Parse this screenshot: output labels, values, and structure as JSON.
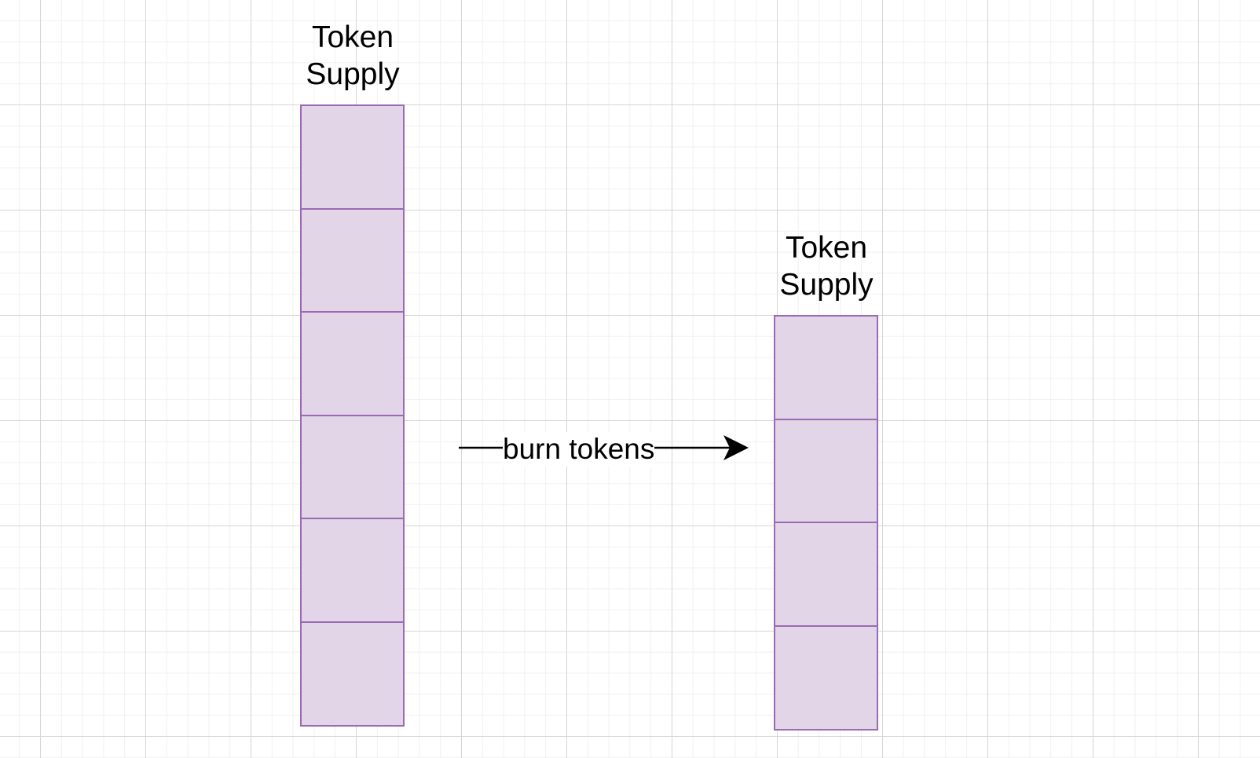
{
  "diagram": {
    "left_stack": {
      "label": "Token Supply",
      "block_count": 6
    },
    "right_stack": {
      "label": "Token Supply",
      "block_count": 4
    },
    "arrow": {
      "label": "burn tokens"
    }
  },
  "colors": {
    "block_fill": "#e1d5e7",
    "block_stroke": "#9b6ab4",
    "text": "#000000",
    "grid_major": "#d6d6d6",
    "grid_minor": "#f0f0f0"
  }
}
